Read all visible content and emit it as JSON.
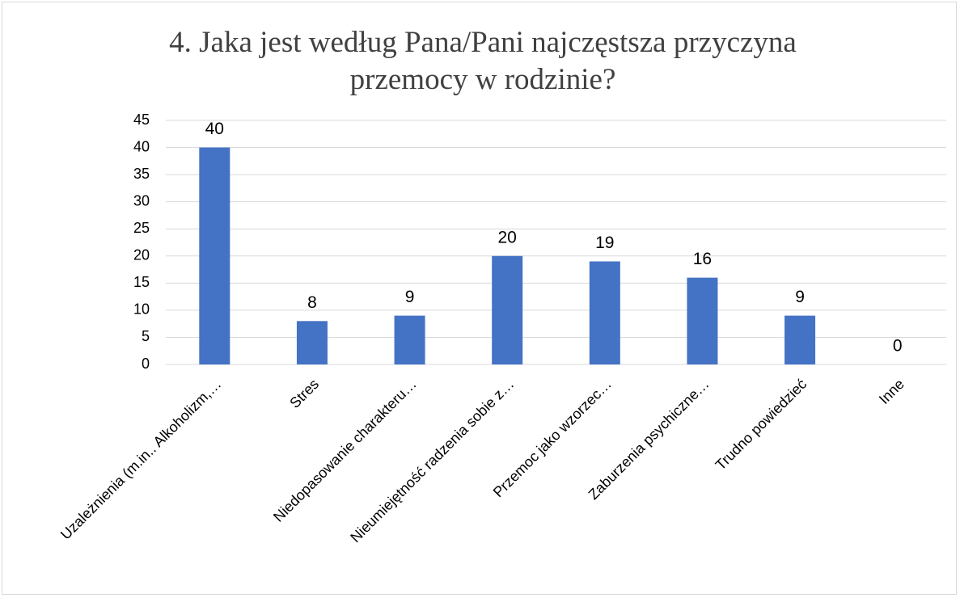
{
  "chart_data": {
    "type": "bar",
    "title": "4. Jaka jest według Pana/Pani najczęstsza przyczyna przemocy w rodzinie?",
    "categories": [
      "Uzależnienia (m.in.. Alkoholizm,…",
      "Stres",
      "Niedopasowanie charakteru…",
      "Nieumiejętność radzenia sobie z…",
      "Przemoc jako wzorzec…",
      "Zaburzenia psychiczne…",
      "Trudno powiedzieć",
      "Inne"
    ],
    "values": [
      40,
      8,
      9,
      20,
      19,
      16,
      9,
      0
    ],
    "color": "#4472c4",
    "ylim": [
      0,
      45
    ],
    "yticks": [
      0,
      5,
      10,
      15,
      20,
      25,
      30,
      35,
      40,
      45
    ],
    "grid": true
  }
}
